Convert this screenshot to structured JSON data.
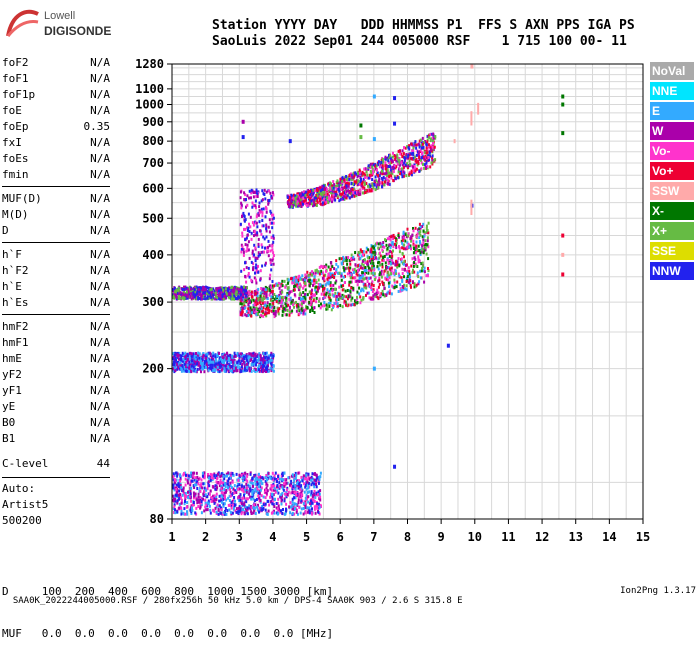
{
  "logo": {
    "line1": "Lowell",
    "line2": "DIGISONDE"
  },
  "header": {
    "labels": "Station YYYY DAY   DDD HHMMSS P1  FFS S AXN PPS IGA PS",
    "values": "SaoLuis 2022 Sep01 244 005000 RSF    1 715 100 00- 11"
  },
  "params": [
    {
      "name": "foF2",
      "value": "N/A"
    },
    {
      "name": "foF1",
      "value": "N/A"
    },
    {
      "name": "foF1p",
      "value": "N/A"
    },
    {
      "name": "foE",
      "value": "N/A"
    },
    {
      "name": "foEp",
      "value": "0.35"
    },
    {
      "name": "fxI",
      "value": "N/A"
    },
    {
      "name": "foEs",
      "value": "N/A"
    },
    {
      "name": "fmin",
      "value": "N/A"
    },
    {
      "name": "MUF(D)",
      "value": "N/A"
    },
    {
      "name": "M(D)",
      "value": "N/A"
    },
    {
      "name": "D",
      "value": "N/A"
    },
    {
      "name": "h`F",
      "value": "N/A"
    },
    {
      "name": "h`F2",
      "value": "N/A"
    },
    {
      "name": "h`E",
      "value": "N/A"
    },
    {
      "name": "h`Es",
      "value": "N/A"
    },
    {
      "name": "hmF2",
      "value": "N/A"
    },
    {
      "name": "hmF1",
      "value": "N/A"
    },
    {
      "name": "hmE",
      "value": "N/A"
    },
    {
      "name": "yF2",
      "value": "N/A"
    },
    {
      "name": "yF1",
      "value": "N/A"
    },
    {
      "name": "yE",
      "value": "N/A"
    },
    {
      "name": "B0",
      "value": "N/A"
    },
    {
      "name": "B1",
      "value": "N/A"
    }
  ],
  "clevel": {
    "label": "C-level",
    "value": "44"
  },
  "auto": {
    "line1": "Auto:",
    "line2": "Artist5",
    "line3": "500200"
  },
  "dmuf": {
    "d_row": "D     100  200  400  600  800  1000 1500 3000 [km]",
    "muf_row": "MUF   0.0  0.0  0.0  0.0  0.0  0.0  0.0  0.0 [MHz]"
  },
  "footer": {
    "left": "SAA0K_2022244005000.RSF / 280fx256h 50 kHz 5.0 km / DPS-4 SAA0K 903 / 2.6 S 315.8 E",
    "right": "Ion2Png 1.3.17"
  },
  "legend": [
    {
      "label": "NoVal",
      "color": "#aaaaaa"
    },
    {
      "label": "NNE",
      "color": "#00e5ff"
    },
    {
      "label": "E",
      "color": "#33aaff"
    },
    {
      "label": "W",
      "color": "#aa00aa"
    },
    {
      "label": "Vo-",
      "color": "#ff33cc"
    },
    {
      "label": "Vo+",
      "color": "#ee0033"
    },
    {
      "label": "SSW",
      "color": "#ffaaaa"
    },
    {
      "label": "X-",
      "color": "#007700"
    },
    {
      "label": "X+",
      "color": "#66bb44"
    },
    {
      "label": "SSE",
      "color": "#dddd00"
    },
    {
      "label": "NNW",
      "color": "#2222ee"
    }
  ],
  "chart_data": {
    "type": "scatter",
    "title": "",
    "xlabel": "",
    "ylabel": "",
    "xlim": [
      1,
      15
    ],
    "ylim": [
      80,
      1280
    ],
    "y_scale": "log",
    "x_ticks": [
      1,
      2,
      3,
      4,
      5,
      6,
      7,
      8,
      9,
      10,
      11,
      12,
      13,
      14,
      15
    ],
    "y_ticks": [
      80,
      200,
      300,
      400,
      500,
      600,
      700,
      800,
      900,
      1000,
      1100,
      1280
    ],
    "grid": true,
    "traces": [
      {
        "name": "F2 trace low",
        "x_start": 3.0,
        "x_end": 8.6,
        "h_start": 300,
        "h_end": 420,
        "colors": [
          "#ff33cc",
          "#ee0033",
          "#aa00aa",
          "#33aaff",
          "#66bb44",
          "#007700"
        ]
      },
      {
        "name": "F2 trace high",
        "x_start": 4.4,
        "x_end": 8.8,
        "h_start": 560,
        "h_end": 780,
        "colors": [
          "#ff33cc",
          "#ee0033",
          "#aa00aa",
          "#2222ee",
          "#66bb44"
        ]
      },
      {
        "name": "Es 210",
        "x_start": 1.0,
        "x_end": 4.0,
        "h_start": 210,
        "h_end": 210,
        "colors": [
          "#2222ee",
          "#aa00aa",
          "#33aaff"
        ]
      },
      {
        "name": "E 100",
        "x_start": 1.0,
        "x_end": 5.4,
        "h_start": 95,
        "h_end": 95,
        "colors": [
          "#2222ee",
          "#aa00aa",
          "#ff33cc",
          "#33aaff"
        ]
      },
      {
        "name": "Es 320",
        "x_start": 1.0,
        "x_end": 3.2,
        "h_start": 320,
        "h_end": 320,
        "colors": [
          "#2222ee",
          "#aa00aa",
          "#66bb44"
        ]
      },
      {
        "name": "spread 3-4",
        "x_start": 3.0,
        "x_end": 4.0,
        "h_start": 340,
        "h_end": 600,
        "colors": [
          "#aa00aa",
          "#ff33cc",
          "#2222ee"
        ]
      }
    ],
    "points": [
      {
        "x": 7.0,
        "h": 1050,
        "color": "#33aaff"
      },
      {
        "x": 7.6,
        "h": 1040,
        "color": "#2222ee"
      },
      {
        "x": 7.6,
        "h": 890,
        "color": "#2222ee"
      },
      {
        "x": 7.0,
        "h": 810,
        "color": "#33aaff"
      },
      {
        "x": 6.6,
        "h": 820,
        "color": "#66bb44"
      },
      {
        "x": 6.6,
        "h": 880,
        "color": "#007700"
      },
      {
        "x": 12.6,
        "h": 1050,
        "color": "#007700"
      },
      {
        "x": 12.6,
        "h": 1000,
        "color": "#007700"
      },
      {
        "x": 12.6,
        "h": 840,
        "color": "#007700"
      },
      {
        "x": 9.9,
        "h": 540,
        "color": "#2222ee"
      },
      {
        "x": 12.6,
        "h": 450,
        "color": "#ee0033"
      },
      {
        "x": 12.6,
        "h": 400,
        "color": "#ffaaaa"
      },
      {
        "x": 12.6,
        "h": 355,
        "color": "#ee0033"
      },
      {
        "x": 9.2,
        "h": 230,
        "color": "#2222ee"
      },
      {
        "x": 7.0,
        "h": 200,
        "color": "#33aaff"
      },
      {
        "x": 7.6,
        "h": 110,
        "color": "#2222ee"
      },
      {
        "x": 3.1,
        "h": 900,
        "color": "#aa00aa"
      },
      {
        "x": 3.1,
        "h": 820,
        "color": "#2222ee"
      },
      {
        "x": 4.5,
        "h": 800,
        "color": "#2222ee"
      },
      {
        "x": 9.9,
        "h": 1260,
        "color": "#ffaaaa"
      }
    ],
    "ssw_segments": [
      {
        "x": 9.9,
        "h_start": 880,
        "h_end": 960
      },
      {
        "x": 10.1,
        "h_start": 940,
        "h_end": 1010
      },
      {
        "x": 9.4,
        "h_start": 790,
        "h_end": 810
      },
      {
        "x": 9.9,
        "h_start": 510,
        "h_end": 560
      }
    ]
  }
}
